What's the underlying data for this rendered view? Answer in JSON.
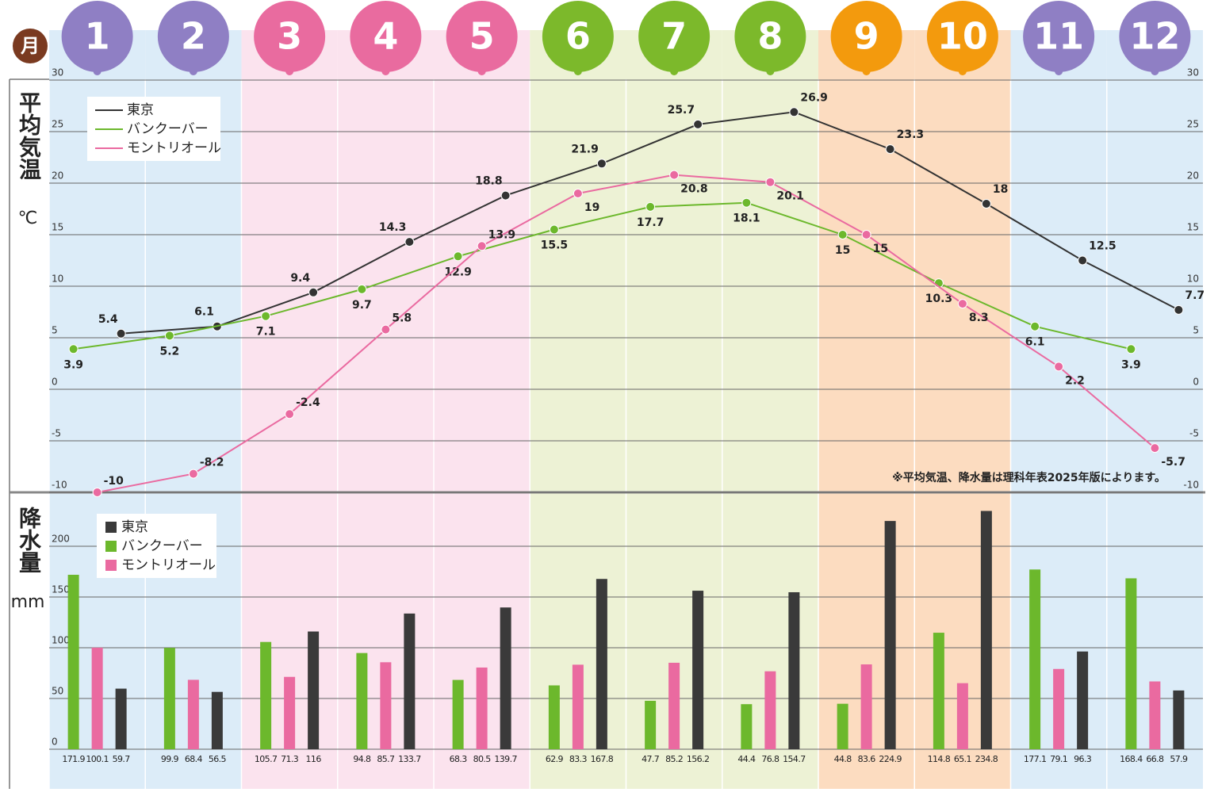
{
  "chart_data": [
    {
      "type": "line",
      "xlabel": "月",
      "categories": [
        "1",
        "2",
        "3",
        "4",
        "5",
        "6",
        "7",
        "8",
        "9",
        "10",
        "11",
        "12"
      ],
      "month_colors": [
        "#8f7fc4",
        "#8f7fc4",
        "#e96b9f",
        "#e96b9f",
        "#e96b9f",
        "#7cb92b",
        "#7cb92b",
        "#7cb92b",
        "#f39a0d",
        "#f39a0d",
        "#8f7fc4",
        "#8f7fc4"
      ],
      "band_colors": [
        "#dcecf8",
        "#dcecf8",
        "#fbe3ee",
        "#fbe3ee",
        "#fbe3ee",
        "#edf2d5",
        "#edf2d5",
        "#edf2d5",
        "#fcdcc0",
        "#fcdcc0",
        "#dcecf8",
        "#dcecf8"
      ],
      "ylabel": "平均気温",
      "yunit": "℃",
      "ylim": [
        -10,
        30
      ],
      "yticks": [
        -10,
        -5,
        0,
        5,
        10,
        15,
        20,
        25,
        30
      ],
      "grid": true,
      "legend": "upper left",
      "series": [
        {
          "name": "東京",
          "color": "#333333",
          "values": [
            5.4,
            6.1,
            9.4,
            14.3,
            18.8,
            21.9,
            25.7,
            26.9,
            23.3,
            18,
            12.5,
            7.7
          ]
        },
        {
          "name": "バンクーバー",
          "color": "#6cb82c",
          "values": [
            3.9,
            5.2,
            7.1,
            9.7,
            12.9,
            15.5,
            17.7,
            18.1,
            15,
            10.3,
            6.1,
            3.9
          ]
        },
        {
          "name": "モントリオール",
          "color": "#ea6aa0",
          "values": [
            -10,
            -8.2,
            -2.4,
            5.8,
            13.9,
            19,
            20.8,
            20.1,
            15,
            8.3,
            2.2,
            -5.7
          ]
        }
      ],
      "annotation": "※平均気温、降水量は理科年表2025年版によります。"
    },
    {
      "type": "bar",
      "ylabel": "降水量",
      "yunit": "mm",
      "ylim": [
        0,
        250
      ],
      "yticks": [
        0,
        50,
        100,
        150,
        200
      ],
      "grid": true,
      "legend": "upper left",
      "series": [
        {
          "name": "東京",
          "color": "#3a3a3a",
          "values": [
            59.7,
            56.5,
            116,
            133.7,
            139.7,
            167.8,
            156.2,
            154.7,
            224.9,
            234.8,
            96.3,
            57.9
          ]
        },
        {
          "name": "バンクーバー",
          "color": "#6cb82c",
          "values": [
            171.9,
            99.9,
            105.7,
            94.8,
            68.3,
            62.9,
            47.7,
            44.4,
            44.8,
            114.8,
            177.1,
            168.4
          ]
        },
        {
          "name": "モントリオール",
          "color": "#ea6aa0",
          "values": [
            100.1,
            68.4,
            71.3,
            85.7,
            80.5,
            83.3,
            85.2,
            76.8,
            83.6,
            65.1,
            79.1,
            66.8
          ]
        }
      ]
    }
  ]
}
